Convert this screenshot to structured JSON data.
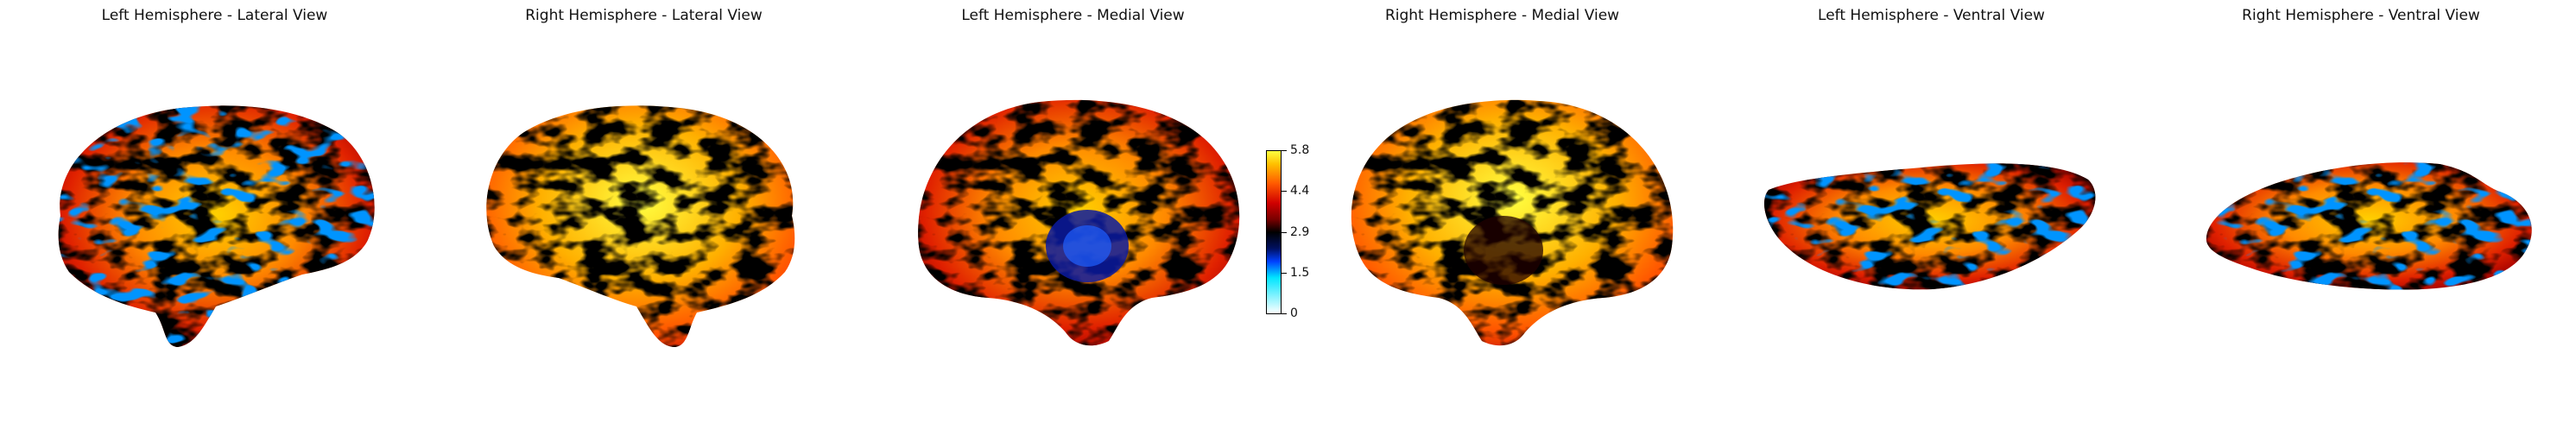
{
  "panels": [
    {
      "title": "Left Hemisphere - Lateral View"
    },
    {
      "title": "Right Hemisphere - Lateral View"
    },
    {
      "title": "Left Hemisphere - Medial View"
    },
    {
      "title": "Right Hemisphere - Medial View"
    },
    {
      "title": "Left Hemisphere - Ventral View"
    },
    {
      "title": "Right Hemisphere - Ventral View"
    }
  ],
  "colorbar": {
    "ticks": [
      "5.8",
      "4.4",
      "2.9",
      "1.5",
      "0"
    ],
    "colormap_stops": [
      "#ffffff",
      "#00e5ff",
      "#0040ff",
      "#000000",
      "#d00000",
      "#ff5a00",
      "#ffff40"
    ]
  }
}
